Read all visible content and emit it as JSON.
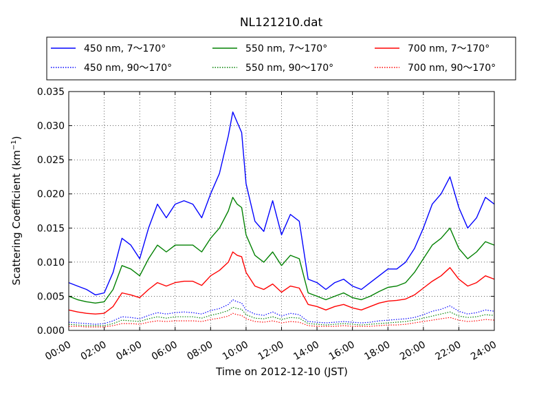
{
  "chart_data": {
    "type": "line",
    "title": "NL121210.dat",
    "xlabel": "Time on 2012-12-10 (JST)",
    "ylabel_main": "Scattering Coefficient (km",
    "ylabel_sup": "−1",
    "ylabel_close": ")",
    "xlim": [
      0,
      24
    ],
    "ylim": [
      0,
      0.035
    ],
    "x_ticks": [
      0,
      2,
      4,
      6,
      8,
      10,
      12,
      14,
      16,
      18,
      20,
      22,
      24
    ],
    "x_tick_labels": [
      "00:00",
      "02:00",
      "04:00",
      "06:00",
      "08:00",
      "10:00",
      "12:00",
      "14:00",
      "16:00",
      "18:00",
      "20:00",
      "22:00",
      "24:00"
    ],
    "y_ticks": [
      0,
      0.005,
      0.01,
      0.015,
      0.02,
      0.025,
      0.03,
      0.035
    ],
    "y_tick_labels": [
      "0.000",
      "0.005",
      "0.010",
      "0.015",
      "0.020",
      "0.025",
      "0.030",
      "0.035"
    ],
    "grid": true,
    "legend_position": "top",
    "x": [
      0,
      0.5,
      1,
      1.5,
      2,
      2.5,
      3,
      3.5,
      4,
      4.5,
      5,
      5.5,
      6,
      6.5,
      7,
      7.5,
      8,
      8.5,
      9,
      9.25,
      9.5,
      9.75,
      10,
      10.5,
      11,
      11.5,
      12,
      12.5,
      13,
      13.5,
      14,
      14.5,
      15,
      15.5,
      16,
      16.5,
      17,
      17.5,
      18,
      18.5,
      19,
      19.5,
      20,
      20.5,
      21,
      21.5,
      22,
      22.5,
      23,
      23.5,
      24
    ],
    "series": [
      {
        "name": "450 nm, 7～170°",
        "color": "#0000ff",
        "style": "solid",
        "values": [
          0.007,
          0.0065,
          0.006,
          0.0052,
          0.0055,
          0.0085,
          0.0135,
          0.0125,
          0.0105,
          0.015,
          0.0185,
          0.0165,
          0.0185,
          0.019,
          0.0185,
          0.0165,
          0.02,
          0.023,
          0.0285,
          0.032,
          0.0305,
          0.029,
          0.0215,
          0.016,
          0.0145,
          0.019,
          0.014,
          0.017,
          0.016,
          0.0075,
          0.007,
          0.006,
          0.007,
          0.0075,
          0.0065,
          0.006,
          0.007,
          0.008,
          0.009,
          0.009,
          0.01,
          0.012,
          0.015,
          0.0185,
          0.02,
          0.0225,
          0.018,
          0.015,
          0.0165,
          0.0195,
          0.0185
        ]
      },
      {
        "name": "550 nm, 7～170°",
        "color": "#008000",
        "style": "solid",
        "values": [
          0.005,
          0.0045,
          0.0042,
          0.004,
          0.0042,
          0.006,
          0.0095,
          0.009,
          0.008,
          0.0105,
          0.0125,
          0.0115,
          0.0125,
          0.0125,
          0.0125,
          0.0115,
          0.0135,
          0.015,
          0.0175,
          0.0195,
          0.0185,
          0.018,
          0.014,
          0.011,
          0.01,
          0.0115,
          0.0095,
          0.011,
          0.0105,
          0.0055,
          0.005,
          0.0045,
          0.005,
          0.0055,
          0.0048,
          0.0045,
          0.005,
          0.0057,
          0.0063,
          0.0065,
          0.007,
          0.0085,
          0.0105,
          0.0125,
          0.0135,
          0.015,
          0.012,
          0.0105,
          0.0115,
          0.013,
          0.0125
        ]
      },
      {
        "name": "700 nm, 7～170°",
        "color": "#ff0000",
        "style": "solid",
        "values": [
          0.003,
          0.0027,
          0.0025,
          0.0024,
          0.0025,
          0.0035,
          0.0055,
          0.0052,
          0.0048,
          0.006,
          0.007,
          0.0065,
          0.007,
          0.0072,
          0.0072,
          0.0066,
          0.008,
          0.0088,
          0.01,
          0.0115,
          0.011,
          0.0108,
          0.0085,
          0.0065,
          0.006,
          0.0068,
          0.0056,
          0.0065,
          0.0062,
          0.0038,
          0.0035,
          0.003,
          0.0035,
          0.0038,
          0.0033,
          0.003,
          0.0035,
          0.004,
          0.0043,
          0.0044,
          0.0046,
          0.0052,
          0.0062,
          0.0072,
          0.008,
          0.0092,
          0.0075,
          0.0065,
          0.007,
          0.008,
          0.0075
        ]
      },
      {
        "name": "450 nm, 90～170°",
        "color": "#0000ff",
        "style": "dotted",
        "values": [
          0.0012,
          0.0011,
          0.001,
          0.0009,
          0.001,
          0.0014,
          0.002,
          0.0019,
          0.0017,
          0.0022,
          0.0026,
          0.0024,
          0.0026,
          0.0027,
          0.0026,
          0.0024,
          0.0029,
          0.0032,
          0.0038,
          0.0045,
          0.0042,
          0.004,
          0.003,
          0.0024,
          0.0022,
          0.0027,
          0.0021,
          0.0025,
          0.0023,
          0.0013,
          0.0012,
          0.0011,
          0.0012,
          0.0013,
          0.0012,
          0.0011,
          0.0012,
          0.0014,
          0.0015,
          0.0016,
          0.0017,
          0.0019,
          0.0023,
          0.0028,
          0.0031,
          0.0036,
          0.0028,
          0.0024,
          0.0026,
          0.003,
          0.0028
        ]
      },
      {
        "name": "550 nm, 90～170°",
        "color": "#008000",
        "style": "dotted",
        "values": [
          0.0009,
          0.0008,
          0.0007,
          0.0007,
          0.0007,
          0.001,
          0.0015,
          0.0014,
          0.0013,
          0.0017,
          0.002,
          0.0018,
          0.002,
          0.002,
          0.002,
          0.0018,
          0.0022,
          0.0025,
          0.0029,
          0.0034,
          0.0032,
          0.0031,
          0.0023,
          0.0018,
          0.0017,
          0.002,
          0.0016,
          0.0019,
          0.0018,
          0.001,
          0.0009,
          0.0008,
          0.0009,
          0.001,
          0.0009,
          0.0008,
          0.0009,
          0.001,
          0.0011,
          0.0012,
          0.0013,
          0.0015,
          0.0018,
          0.0021,
          0.0024,
          0.0027,
          0.0021,
          0.0019,
          0.002,
          0.0023,
          0.0022
        ]
      },
      {
        "name": "700 nm, 90～170°",
        "color": "#ff0000",
        "style": "dotted",
        "values": [
          0.0006,
          0.0006,
          0.0005,
          0.0005,
          0.0005,
          0.0007,
          0.001,
          0.001,
          0.0009,
          0.0012,
          0.0014,
          0.0013,
          0.0014,
          0.0014,
          0.0014,
          0.0013,
          0.0016,
          0.0018,
          0.0021,
          0.0025,
          0.0023,
          0.0022,
          0.0017,
          0.0013,
          0.0012,
          0.0014,
          0.0011,
          0.0013,
          0.0012,
          0.0007,
          0.0006,
          0.0006,
          0.0006,
          0.0007,
          0.0006,
          0.0006,
          0.0006,
          0.0007,
          0.0008,
          0.0008,
          0.0009,
          0.0011,
          0.0013,
          0.0015,
          0.0017,
          0.0019,
          0.0015,
          0.0013,
          0.0014,
          0.0016,
          0.0015
        ]
      }
    ]
  }
}
